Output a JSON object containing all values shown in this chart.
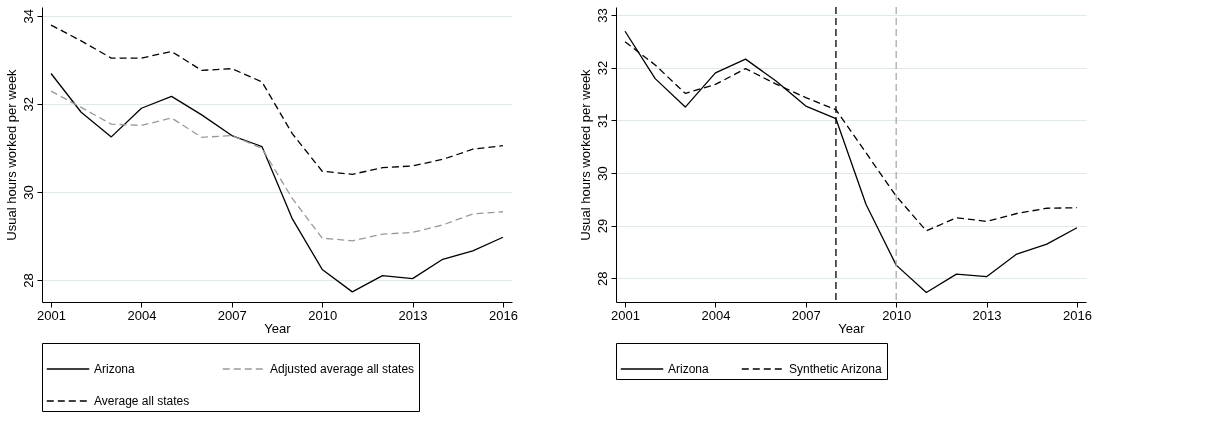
{
  "chart_data": [
    {
      "type": "line",
      "xlabel": "Year",
      "ylabel": "Usual hours worked per week",
      "x": [
        2001,
        2002,
        2003,
        2004,
        2005,
        2006,
        2007,
        2008,
        2009,
        2010,
        2011,
        2012,
        2013,
        2014,
        2015,
        2016
      ],
      "series": [
        {
          "name": "Arizona",
          "color": "#000000",
          "line_style": "solid",
          "values": [
            32.69,
            31.81,
            31.25,
            31.9,
            32.17,
            31.75,
            31.28,
            31.03,
            29.4,
            28.24,
            27.73,
            28.1,
            28.03,
            28.47,
            28.66,
            28.97
          ]
        },
        {
          "name": "Adjusted average all states",
          "color": "#999999",
          "line_style": "dashed",
          "values": [
            32.29,
            31.92,
            31.54,
            31.51,
            31.68,
            31.24,
            31.28,
            30.99,
            29.86,
            28.95,
            28.89,
            29.04,
            29.08,
            29.25,
            29.5,
            29.55
          ]
        },
        {
          "name": "Average all states",
          "color": "#000000",
          "line_style": "dashed",
          "values": [
            33.79,
            33.43,
            33.04,
            33.04,
            33.19,
            32.76,
            32.8,
            32.5,
            31.33,
            30.47,
            30.4,
            30.55,
            30.59,
            30.74,
            30.97,
            31.05
          ]
        }
      ],
      "xlim": [
        2000.7,
        2016.3
      ],
      "xticks": [
        2001,
        2004,
        2007,
        2010,
        2013,
        2016
      ],
      "ylim": [
        27.5,
        34.2
      ],
      "yticks": [
        28,
        30,
        32,
        34
      ],
      "grid": "y",
      "legend": "bottom"
    },
    {
      "type": "line",
      "xlabel": "Year",
      "ylabel": "Usual hours worked per week",
      "x": [
        2001,
        2002,
        2003,
        2004,
        2005,
        2006,
        2007,
        2008,
        2009,
        2010,
        2011,
        2012,
        2013,
        2014,
        2015,
        2016
      ],
      "series": [
        {
          "name": "Arizona",
          "color": "#000000",
          "line_style": "solid",
          "values": [
            32.69,
            31.79,
            31.25,
            31.9,
            32.16,
            31.75,
            31.27,
            31.03,
            29.4,
            28.25,
            27.73,
            28.08,
            28.03,
            28.46,
            28.65,
            28.96
          ]
        },
        {
          "name": "Synthetic Arizona",
          "color": "#000000",
          "line_style": "dashed",
          "values": [
            32.49,
            32.05,
            31.51,
            31.68,
            31.98,
            31.69,
            31.43,
            31.2,
            30.38,
            29.56,
            28.9,
            29.15,
            29.08,
            29.23,
            29.33,
            29.34
          ]
        }
      ],
      "ref_lines": [
        {
          "axis": "x",
          "value": 2008,
          "color": "#000000",
          "line_style": "dashed"
        },
        {
          "axis": "x",
          "value": 2010,
          "color": "#aaaaaa",
          "line_style": "dashed"
        }
      ],
      "xlim": [
        2000.7,
        2016.3
      ],
      "xticks": [
        2001,
        2004,
        2007,
        2010,
        2013,
        2016
      ],
      "ylim": [
        27.55,
        33.15
      ],
      "yticks": [
        28,
        29,
        30,
        31,
        32,
        33
      ],
      "grid": "y",
      "legend": "bottom"
    }
  ]
}
